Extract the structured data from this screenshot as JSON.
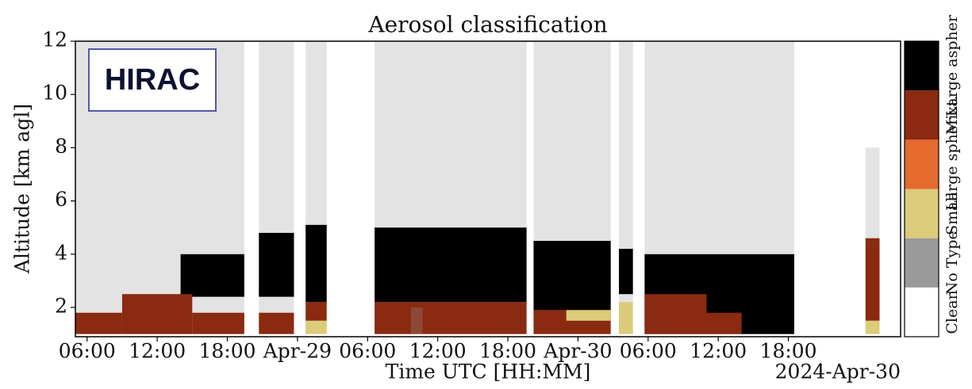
{
  "chart_data": {
    "type": "classification",
    "title": "Aerosol classification",
    "xlabel": "Time UTC [HH:MM]",
    "ylabel": "Altitude [km agl]",
    "date_label": "2024-Apr-30",
    "badge": "HIRAC",
    "xlim": [
      5,
      75.6
    ],
    "ylim": [
      0.9,
      12
    ],
    "xticks": [
      {
        "value": 6,
        "label": "06:00"
      },
      {
        "value": 12,
        "label": "12:00"
      },
      {
        "value": 18,
        "label": "18:00"
      },
      {
        "value": 24,
        "label": "Apr-29"
      },
      {
        "value": 30,
        "label": "06:00"
      },
      {
        "value": 36,
        "label": "12:00"
      },
      {
        "value": 42,
        "label": "18:00"
      },
      {
        "value": 48,
        "label": "Apr-30"
      },
      {
        "value": 54,
        "label": "06:00"
      },
      {
        "value": 60,
        "label": "12:00"
      },
      {
        "value": 66,
        "label": "18:00"
      }
    ],
    "yticks": [
      2,
      4,
      6,
      8,
      10,
      12
    ],
    "classes": [
      {
        "name": "Clean",
        "color": "#ffffff"
      },
      {
        "name": "No Type",
        "color": "#9a9a9a"
      },
      {
        "name": "Small",
        "color": "#dccb78"
      },
      {
        "name": "Large spher",
        "color": "#e56a30"
      },
      {
        "name": "Mixt.",
        "color": "#8a2a10"
      },
      {
        "name": "Large aspher",
        "color": "#000000"
      }
    ],
    "regions": [
      {
        "x": [
          5,
          19.45
        ],
        "y": [
          1.0,
          12
        ],
        "class": 1
      },
      {
        "x": [
          14,
          19.45
        ],
        "y": [
          2.4,
          4.0
        ],
        "class": 5
      },
      {
        "x": [
          5,
          9
        ],
        "y": [
          1.0,
          1.8
        ],
        "class": 4
      },
      {
        "x": [
          9,
          15
        ],
        "y": [
          1.0,
          2.5
        ],
        "class": 4
      },
      {
        "x": [
          15,
          19.45
        ],
        "y": [
          1.0,
          1.8
        ],
        "class": 4
      },
      {
        "x": [
          20.7,
          23.7
        ],
        "y": [
          1.0,
          12
        ],
        "class": 1
      },
      {
        "x": [
          20.7,
          23.7
        ],
        "y": [
          2.4,
          4.8
        ],
        "class": 5
      },
      {
        "x": [
          20.7,
          23.7
        ],
        "y": [
          1.0,
          1.8
        ],
        "class": 4
      },
      {
        "x": [
          24.7,
          26.5
        ],
        "y": [
          1.0,
          12
        ],
        "class": 1
      },
      {
        "x": [
          24.7,
          26.5
        ],
        "y": [
          2.2,
          5.1
        ],
        "class": 5
      },
      {
        "x": [
          24.7,
          26.5
        ],
        "y": [
          1.5,
          2.2
        ],
        "class": 4
      },
      {
        "x": [
          24.7,
          26.5
        ],
        "y": [
          1.0,
          1.5
        ],
        "class": 2
      },
      {
        "x": [
          30.6,
          43.6
        ],
        "y": [
          1.0,
          12
        ],
        "class": 1
      },
      {
        "x": [
          30.6,
          43.6
        ],
        "y": [
          2.2,
          5.0
        ],
        "class": 5
      },
      {
        "x": [
          30.6,
          43.6
        ],
        "y": [
          1.0,
          2.2
        ],
        "class": 4
      },
      {
        "x": [
          33.7,
          34.7
        ],
        "y": [
          1.0,
          2.0
        ],
        "class": 1
      },
      {
        "x": [
          44.2,
          50.8
        ],
        "y": [
          1.0,
          12
        ],
        "class": 1
      },
      {
        "x": [
          44.2,
          50.8
        ],
        "y": [
          1.9,
          4.5
        ],
        "class": 5
      },
      {
        "x": [
          44.2,
          50.8
        ],
        "y": [
          1.0,
          1.9
        ],
        "class": 4
      },
      {
        "x": [
          47,
          50.8
        ],
        "y": [
          1.5,
          1.9
        ],
        "class": 2
      },
      {
        "x": [
          51.5,
          52.7
        ],
        "y": [
          1.0,
          12
        ],
        "class": 1
      },
      {
        "x": [
          51.5,
          52.7
        ],
        "y": [
          2.5,
          4.2
        ],
        "class": 5
      },
      {
        "x": [
          51.5,
          52.7
        ],
        "y": [
          1.0,
          2.2
        ],
        "class": 2
      },
      {
        "x": [
          53.7,
          66.5
        ],
        "y": [
          1.0,
          12
        ],
        "class": 1
      },
      {
        "x": [
          53.7,
          66.5
        ],
        "y": [
          1.0,
          4.0
        ],
        "class": 5
      },
      {
        "x": [
          53.7,
          59
        ],
        "y": [
          1.0,
          2.5
        ],
        "class": 4
      },
      {
        "x": [
          59,
          62
        ],
        "y": [
          1.0,
          1.8
        ],
        "class": 4
      },
      {
        "x": [
          72.6,
          73.8
        ],
        "y": [
          1.0,
          8
        ],
        "class": 1
      },
      {
        "x": [
          72.6,
          73.8
        ],
        "y": [
          1.5,
          4.6
        ],
        "class": 4
      },
      {
        "x": [
          72.6,
          73.8
        ],
        "y": [
          1.0,
          1.5
        ],
        "class": 2
      }
    ]
  }
}
